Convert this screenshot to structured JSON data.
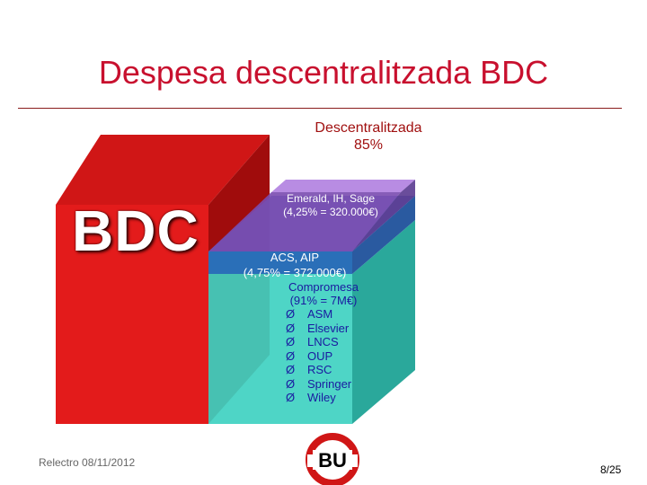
{
  "slide": {
    "title": "Despesa descentralitzada BDC",
    "footer_left": "Relectro 08/11/2012",
    "page_number": "8/25"
  },
  "diagram": {
    "descentralitzada_label": "Descentralitzada",
    "descentralitzada_percent": "85%",
    "bdc_label": "BDC",
    "emerald_line1": "Emerald, IH, Sage",
    "emerald_line2": "(4,25% = 320.000€)",
    "acs_line1": "ACS, AIP",
    "acs_line2": "(4,75% = 372.000€)",
    "compromesa_line1": "Compromesa",
    "compromesa_line2": "(91% = 7M€)",
    "publishers": [
      {
        "arrow": "Ø",
        "name": "ASM"
      },
      {
        "arrow": "Ø",
        "name": "Elsevier"
      },
      {
        "arrow": "Ø",
        "name": "LNCS"
      },
      {
        "arrow": "Ø",
        "name": "OUP"
      },
      {
        "arrow": "Ø",
        "name": "RSC"
      },
      {
        "arrow": "Ø",
        "name": "Springer"
      },
      {
        "arrow": "Ø",
        "name": "Wiley"
      }
    ],
    "colors": {
      "red_front": "#e31b1b",
      "red_top": "#c41313",
      "red_side": "#9e0a0a",
      "teal_front": "#3fd1c1",
      "teal_side": "#2aa89b",
      "teal_top": "#5fded0",
      "blue_band": "#2a6fb8",
      "purple_band": "#8a4fc0",
      "purple_top": "#b080e0"
    }
  },
  "logo": {
    "text": "BU"
  }
}
